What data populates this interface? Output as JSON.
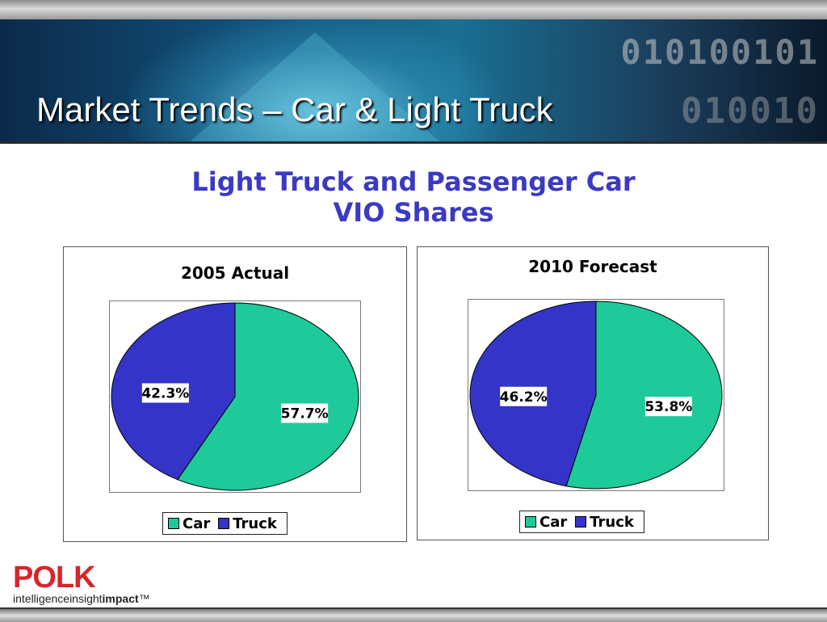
{
  "slide": {
    "title": "Market Trends – Car & Light Truck",
    "subtitle_line1": "Light Truck and Passenger Car",
    "subtitle_line2": "VIO Shares"
  },
  "banner": {
    "binary_line1": "010100101",
    "binary_line2": "010010"
  },
  "colors": {
    "car": "#1ec99a",
    "truck": "#3434c8",
    "subtitle": "#3a3ac2"
  },
  "chart_data": [
    {
      "type": "pie",
      "title": "2005 Actual",
      "categories": [
        "Car",
        "Truck"
      ],
      "values": [
        57.7,
        42.3
      ],
      "labels": [
        "57.7%",
        "42.3%"
      ],
      "legend": [
        "Car",
        "Truck"
      ],
      "legend_placement": "bottom"
    },
    {
      "type": "pie",
      "title": "2010 Forecast",
      "categories": [
        "Car",
        "Truck"
      ],
      "values": [
        53.8,
        46.2
      ],
      "labels": [
        "53.8%",
        "46.2%"
      ],
      "legend": [
        "Car",
        "Truck"
      ],
      "legend_placement": "bottom"
    }
  ],
  "logo": {
    "word": "POLK",
    "tag_regular": "intelligence",
    "tag_mid": "insight",
    "tag_bold": "impact",
    "tm": "™"
  }
}
